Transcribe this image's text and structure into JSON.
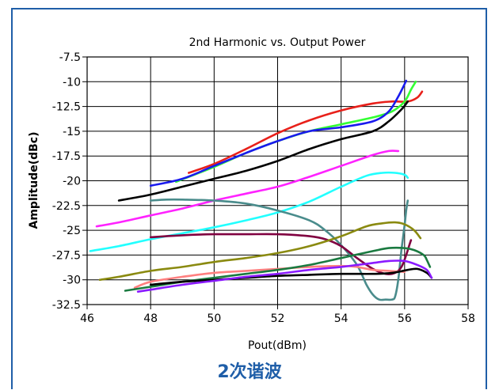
{
  "chart_data": {
    "type": "line",
    "title": "2nd Harmonic vs. Output Power",
    "xlabel": "Pout(dBm)",
    "ylabel": "Amplitude(dBc)",
    "xlim": [
      46,
      58
    ],
    "ylim": [
      -32.5,
      -7.5
    ],
    "xticks": [
      "46",
      "48",
      "50",
      "52",
      "54",
      "56",
      "58"
    ],
    "yticks": [
      "-7.5",
      "-10",
      "-12.5",
      "-15",
      "-17.5",
      "-20",
      "-22.5",
      "-25",
      "-27.5",
      "-30",
      "-32.5"
    ],
    "grid": true,
    "series": [
      {
        "color": "#e8201a",
        "x": [
          49.2,
          50,
          51,
          52,
          53,
          54,
          55,
          55.6,
          56.1,
          56.4,
          56.55
        ],
        "y": [
          -19.2,
          -18.3,
          -16.8,
          -15.2,
          -13.9,
          -12.9,
          -12.2,
          -12.0,
          -12.0,
          -11.6,
          -11.0
        ]
      },
      {
        "color": "#33ff33",
        "x": [
          48.8,
          50,
          51,
          52,
          53,
          54,
          55,
          55.6,
          56.0,
          56.2,
          56.35
        ],
        "y": [
          -20.1,
          -18.6,
          -17.2,
          -16.0,
          -15.0,
          -14.3,
          -13.6,
          -13.0,
          -12.0,
          -10.8,
          -10.0
        ]
      },
      {
        "color": "#1a1aee",
        "x": [
          48,
          49,
          50,
          51,
          52,
          53,
          54,
          55,
          55.5,
          55.8,
          56.05
        ],
        "y": [
          -20.5,
          -19.8,
          -18.5,
          -17.2,
          -16.0,
          -15.0,
          -14.6,
          -14.0,
          -13.0,
          -11.5,
          -9.9
        ]
      },
      {
        "color": "#000000",
        "x": [
          47,
          48,
          49,
          50,
          51,
          52,
          53,
          54,
          55,
          55.5,
          55.9,
          56.1
        ],
        "y": [
          -22.0,
          -21.4,
          -20.6,
          -19.8,
          -19.0,
          -18.0,
          -16.8,
          -15.8,
          -15.0,
          -14.0,
          -12.8,
          -12.0
        ]
      },
      {
        "color": "#ff22ff",
        "x": [
          46.3,
          47,
          48,
          49,
          50,
          51,
          52,
          53,
          54,
          55,
          55.5,
          55.8
        ],
        "y": [
          -24.6,
          -24.2,
          -23.5,
          -22.8,
          -22.0,
          -21.3,
          -20.6,
          -19.6,
          -18.5,
          -17.4,
          -17.0,
          -17.0
        ]
      },
      {
        "color": "#22ffff",
        "x": [
          46.1,
          47,
          48,
          49,
          50,
          51,
          52,
          53,
          54,
          54.8,
          55.3,
          55.7,
          56.0,
          56.1
        ],
        "y": [
          -27.1,
          -26.6,
          -25.9,
          -25.3,
          -24.7,
          -24.0,
          -23.2,
          -22.1,
          -20.6,
          -19.5,
          -19.2,
          -19.2,
          -19.4,
          -19.7
        ]
      },
      {
        "color": "#4a8c8c",
        "x": [
          48,
          48.5,
          49,
          50,
          51,
          52,
          53,
          53.5,
          54,
          54.5,
          54.8,
          55,
          55.2,
          55.4,
          55.6,
          55.7,
          55.8,
          55.9,
          56.0,
          56.05,
          56.1
        ],
        "y": [
          -22.0,
          -21.9,
          -21.9,
          -22.0,
          -22.3,
          -23.0,
          -24.0,
          -25.0,
          -26.5,
          -28.5,
          -30.5,
          -31.5,
          -32.0,
          -32.0,
          -32.0,
          -31.7,
          -30.0,
          -27.0,
          -24.5,
          -23.0,
          -22.0
        ]
      },
      {
        "color": "#800040",
        "x": [
          48,
          49,
          50,
          51,
          52,
          53,
          53.5,
          54,
          54.5,
          55,
          55.4,
          55.7,
          55.9,
          56.05,
          56.15,
          56.2
        ],
        "y": [
          -25.7,
          -25.5,
          -25.4,
          -25.4,
          -25.4,
          -25.6,
          -25.9,
          -26.6,
          -27.8,
          -28.9,
          -29.4,
          -29.3,
          -28.7,
          -27.5,
          -26.5,
          -26.0
        ]
      },
      {
        "color": "#8a8a10",
        "x": [
          46.4,
          47,
          48,
          49,
          50,
          51,
          52,
          53,
          54,
          54.8,
          55.3,
          55.7,
          56.0,
          56.3,
          56.5
        ],
        "y": [
          -30.0,
          -29.7,
          -29.1,
          -28.7,
          -28.2,
          -27.8,
          -27.3,
          -26.6,
          -25.6,
          -24.6,
          -24.3,
          -24.2,
          -24.4,
          -25.0,
          -25.8
        ]
      },
      {
        "color": "#ff8080",
        "x": [
          47.5,
          48,
          49,
          50,
          51,
          52,
          53,
          54,
          54.5,
          55,
          55.5,
          56.0
        ],
        "y": [
          -30.8,
          -30.2,
          -29.7,
          -29.3,
          -29.1,
          -28.9,
          -28.7,
          -28.6,
          -28.7,
          -29.0,
          -29.1,
          -29.2
        ]
      },
      {
        "color": "#1a7a40",
        "x": [
          47.2,
          48,
          49,
          50,
          51,
          52,
          53,
          54,
          55,
          55.5,
          56.0,
          56.3,
          56.6,
          56.7,
          56.8
        ],
        "y": [
          -31.1,
          -30.7,
          -30.2,
          -29.8,
          -29.4,
          -29.0,
          -28.5,
          -27.8,
          -27.1,
          -26.8,
          -26.8,
          -27.0,
          -27.5,
          -28.0,
          -28.7
        ]
      },
      {
        "color": "#000000",
        "x": [
          48,
          49,
          50,
          51,
          52,
          53,
          54,
          55,
          55.6,
          56.1,
          56.4,
          56.7,
          56.85
        ],
        "y": [
          -30.5,
          -30.2,
          -30.0,
          -29.8,
          -29.6,
          -29.5,
          -29.4,
          -29.4,
          -29.3,
          -29.0,
          -28.9,
          -29.3,
          -29.8
        ]
      },
      {
        "color": "#8a1aff",
        "x": [
          47.6,
          48,
          49,
          50,
          51,
          52,
          53,
          54,
          54.5,
          55,
          55.5,
          56.0,
          56.4,
          56.7,
          56.85
        ],
        "y": [
          -31.2,
          -31.0,
          -30.5,
          -30.1,
          -29.7,
          -29.4,
          -29.0,
          -28.7,
          -28.5,
          -28.3,
          -28.1,
          -28.1,
          -28.5,
          -29.0,
          -29.8
        ]
      }
    ]
  },
  "caption": "2次谐波"
}
